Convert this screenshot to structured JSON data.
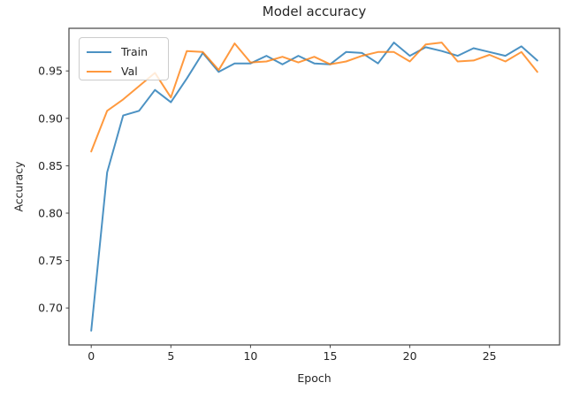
{
  "figure": {
    "title": "Model accuracy",
    "xlabel": "Epoch",
    "ylabel": "Accuracy"
  },
  "legend": {
    "items": [
      {
        "label": "Train",
        "color": "#1f77b4"
      },
      {
        "label": "Val",
        "color": "#ff7f0e"
      }
    ]
  },
  "chart_data": {
    "type": "line",
    "title": "Model accuracy",
    "xlabel": "Epoch",
    "ylabel": "Accuracy",
    "x": [
      0,
      1,
      2,
      3,
      4,
      5,
      6,
      7,
      8,
      9,
      10,
      11,
      12,
      13,
      14,
      15,
      16,
      17,
      18,
      19,
      20,
      21,
      22,
      23,
      24,
      25,
      26,
      27,
      28
    ],
    "series": [
      {
        "name": "Train",
        "color": "#1f77b4",
        "alpha": 0.8,
        "values": [
          0.676,
          0.843,
          0.903,
          0.908,
          0.93,
          0.917,
          0.942,
          0.969,
          0.949,
          0.958,
          0.958,
          0.966,
          0.957,
          0.966,
          0.958,
          0.957,
          0.97,
          0.969,
          0.958,
          0.98,
          0.966,
          0.975,
          0.971,
          0.966,
          0.974,
          0.97,
          0.966,
          0.976,
          0.961
        ]
      },
      {
        "name": "Val",
        "color": "#ff7f0e",
        "alpha": 0.8,
        "values": [
          0.865,
          0.908,
          0.92,
          0.934,
          0.948,
          0.922,
          0.971,
          0.97,
          0.951,
          0.979,
          0.959,
          0.96,
          0.965,
          0.959,
          0.965,
          0.957,
          0.96,
          0.966,
          0.97,
          0.97,
          0.96,
          0.978,
          0.98,
          0.96,
          0.961,
          0.967,
          0.96,
          0.97,
          0.949
        ]
      }
    ],
    "xlim": [
      -1.4,
      29.4
    ],
    "ylim": [
      0.661,
      0.995
    ],
    "xticks": [
      0,
      5,
      10,
      15,
      20,
      25
    ],
    "yticks": [
      0.7,
      0.75,
      0.8,
      0.85,
      0.9,
      0.95
    ],
    "grid": false,
    "legend_position": "upper left",
    "spine_color": "#444444"
  }
}
